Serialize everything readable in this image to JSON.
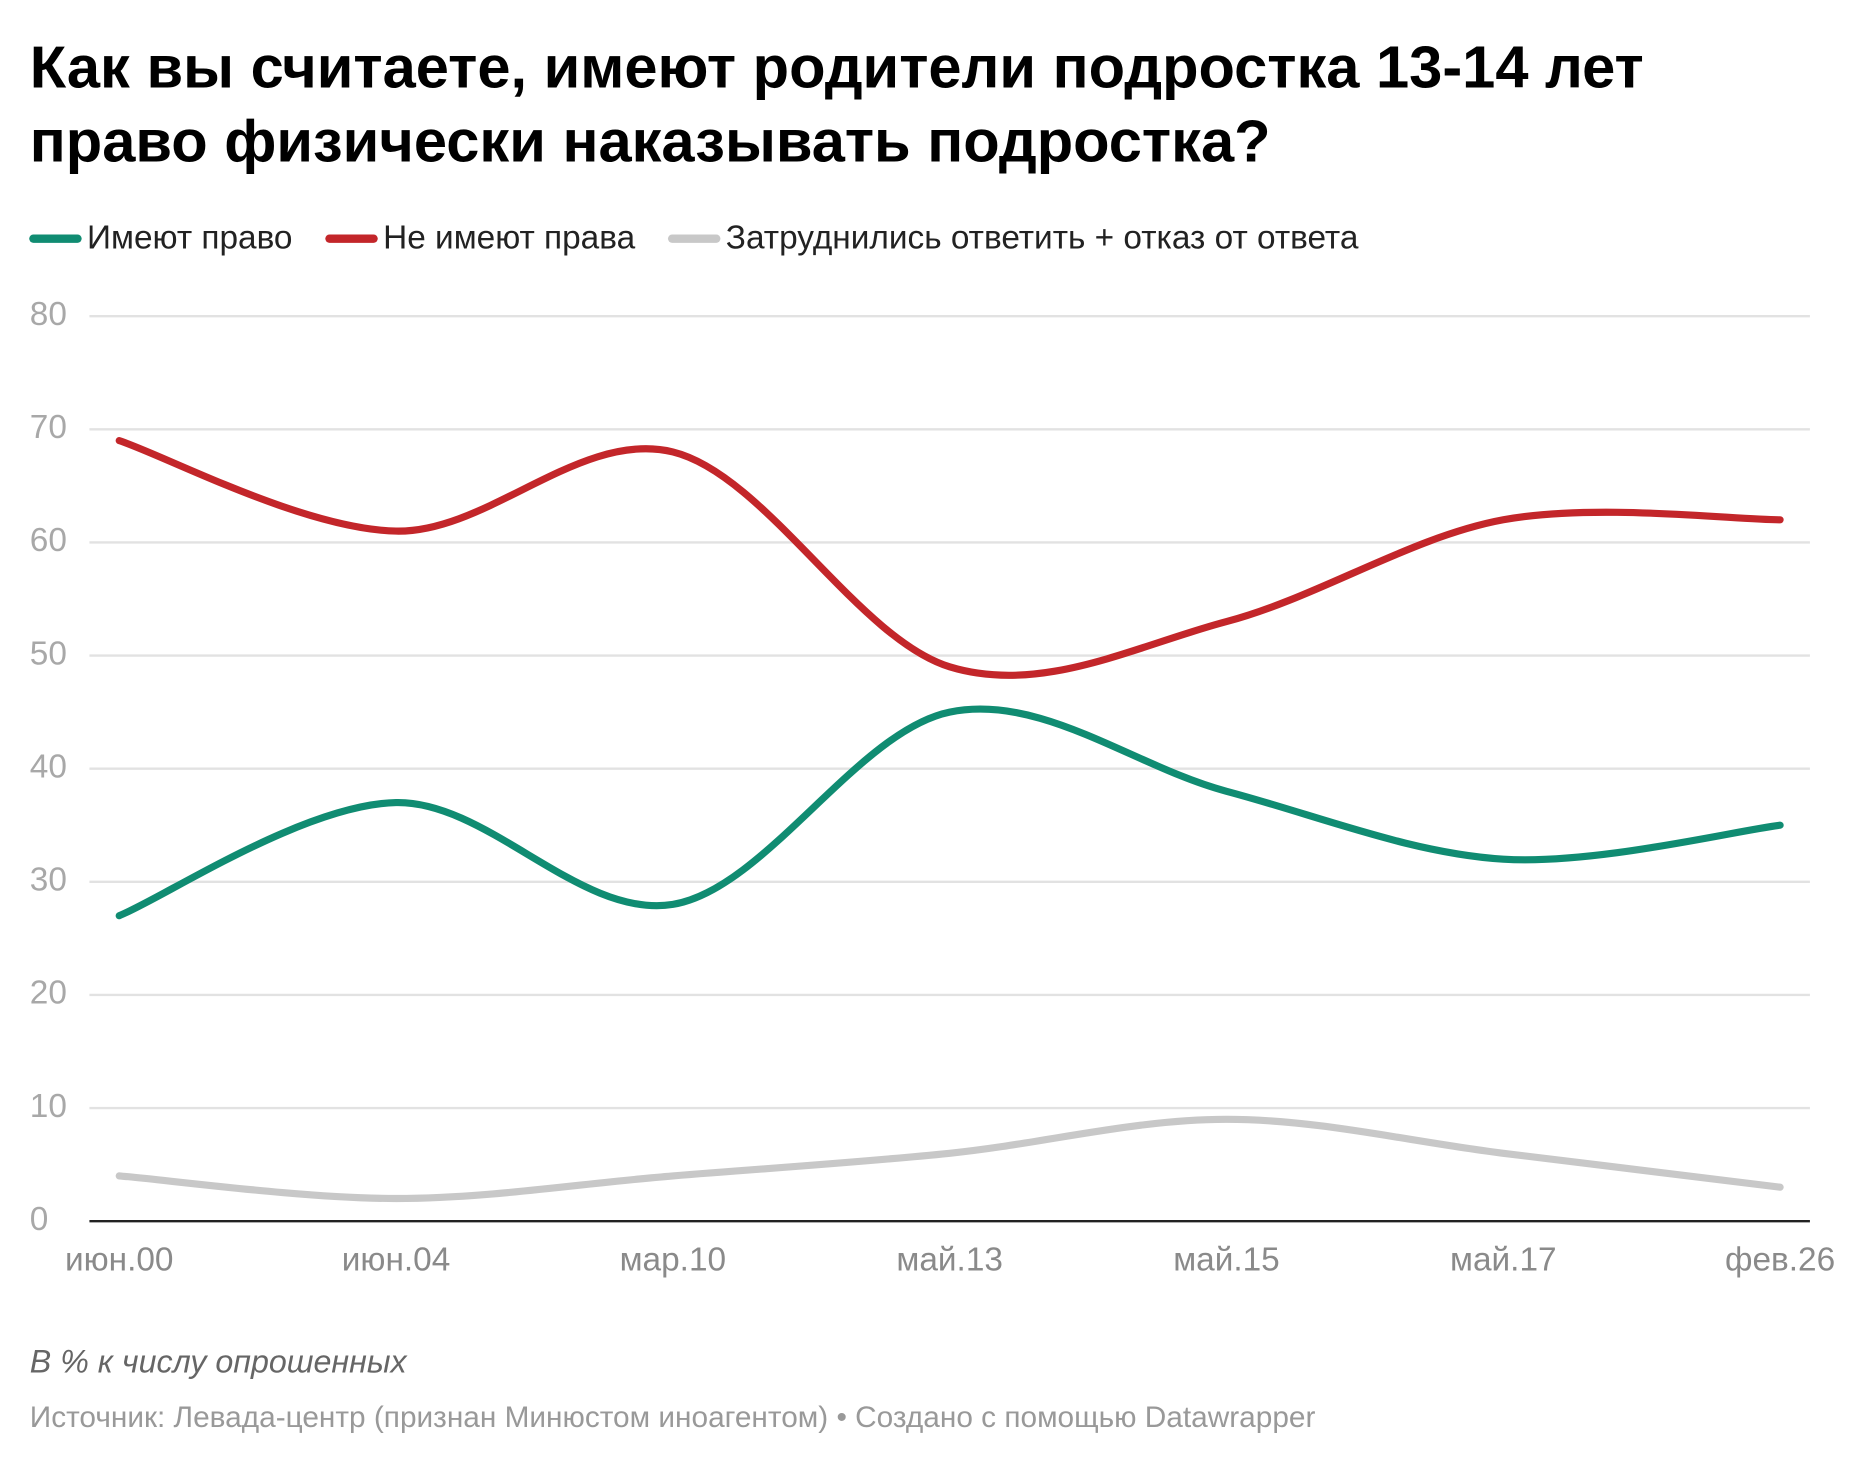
{
  "chart_data": {
    "type": "line",
    "title": [
      "Как вы считаете, имеют родители подростка 13-14 лет",
      "право физически наказывать подростка?"
    ],
    "categories": [
      "июн.00",
      "июн.04",
      "мар.10",
      "май.13",
      "май.15",
      "май.17",
      "фев.26"
    ],
    "series": [
      {
        "name": "Имеют право",
        "color": "#108c72",
        "values": [
          27,
          37,
          28,
          45,
          38,
          32,
          35
        ]
      },
      {
        "name": "Не имеют права",
        "color": "#c3262a",
        "values": [
          69,
          61,
          68,
          49,
          53,
          62,
          62
        ]
      },
      {
        "name": "Затруднились ответить + отказ от ответа",
        "color": "#c8c8c8",
        "values": [
          4,
          2,
          4,
          6,
          9,
          6,
          3
        ]
      }
    ],
    "ylim": [
      0,
      80
    ],
    "yticks": [
      0,
      10,
      20,
      30,
      40,
      50,
      60,
      70,
      80
    ],
    "grid": true,
    "notes": "В % к числу опрошенных",
    "source": "Источник: Левада-центр (признан Минюстом иноагентом) • Создано с помощью Datawrapper"
  }
}
